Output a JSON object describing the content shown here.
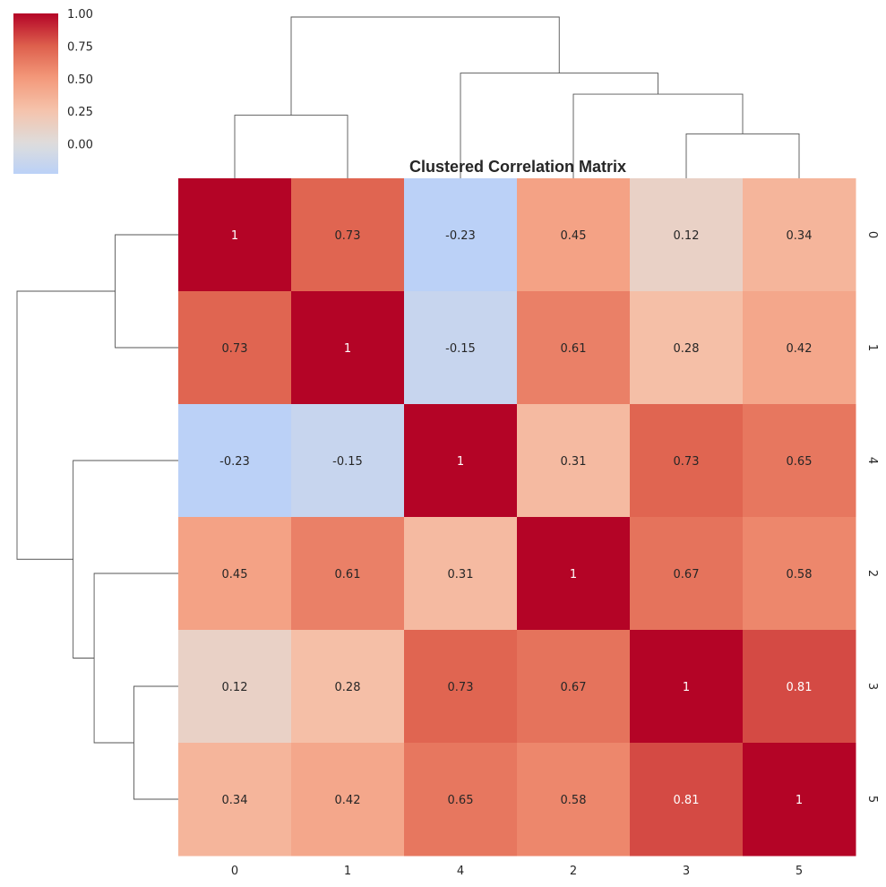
{
  "chart_data": {
    "type": "heatmap",
    "title": "Clustered Correlation Matrix",
    "row_labels": [
      "0",
      "1",
      "4",
      "2",
      "3",
      "5"
    ],
    "col_labels": [
      "0",
      "1",
      "4",
      "2",
      "3",
      "5"
    ],
    "values": [
      [
        1,
        0.73,
        -0.23,
        0.45,
        0.12,
        0.34
      ],
      [
        0.73,
        1,
        -0.15,
        0.61,
        0.28,
        0.42
      ],
      [
        -0.23,
        -0.15,
        1,
        0.31,
        0.73,
        0.65
      ],
      [
        0.45,
        0.61,
        0.31,
        1,
        0.67,
        0.58
      ],
      [
        0.12,
        0.28,
        0.73,
        0.67,
        1,
        0.81
      ],
      [
        0.34,
        0.42,
        0.65,
        0.58,
        0.81,
        1
      ]
    ],
    "annotations": [
      [
        "1",
        "0.73",
        "-0.23",
        "0.45",
        "0.12",
        "0.34"
      ],
      [
        "0.73",
        "1",
        "-0.15",
        "0.61",
        "0.28",
        "0.42"
      ],
      [
        "-0.23",
        "-0.15",
        "1",
        "0.31",
        "0.73",
        "0.65"
      ],
      [
        "0.45",
        "0.61",
        "0.31",
        "1",
        "0.67",
        "0.58"
      ],
      [
        "0.12",
        "0.28",
        "0.73",
        "0.67",
        "1",
        "0.81"
      ],
      [
        "0.34",
        "0.42",
        "0.65",
        "0.58",
        "0.81",
        "1"
      ]
    ],
    "colormap": "coolwarm",
    "vmin": -0.23,
    "vmax": 1.0,
    "center": 0,
    "colorbar": {
      "range": [
        -0.23,
        1.0
      ],
      "ticks": [
        1.0,
        0.75,
        0.5,
        0.25,
        0.0
      ],
      "tick_labels": [
        "1.00",
        "0.75",
        "0.50",
        "0.25",
        "0.00"
      ],
      "placement": "top-left"
    },
    "row_dendrogram_merges": [
      {
        "left": "0",
        "right": "1",
        "height": 0.27
      },
      {
        "left": "3",
        "right": "5",
        "height": 0.19
      },
      {
        "left": "2",
        "right": "3+5",
        "height": 0.36
      },
      {
        "left": "4",
        "right": "2+3+5",
        "height": 0.45
      },
      {
        "left": "0+1",
        "right": "4+2+3+5",
        "height": 0.69
      }
    ],
    "col_dendrogram_merges": [
      {
        "left": "0",
        "right": "1",
        "height": 0.27
      },
      {
        "left": "3",
        "right": "5",
        "height": 0.19
      },
      {
        "left": "2",
        "right": "3+5",
        "height": 0.36
      },
      {
        "left": "4",
        "right": "2+3+5",
        "height": 0.45
      },
      {
        "left": "0+1",
        "right": "4+2+3+5",
        "height": 0.69
      }
    ]
  }
}
